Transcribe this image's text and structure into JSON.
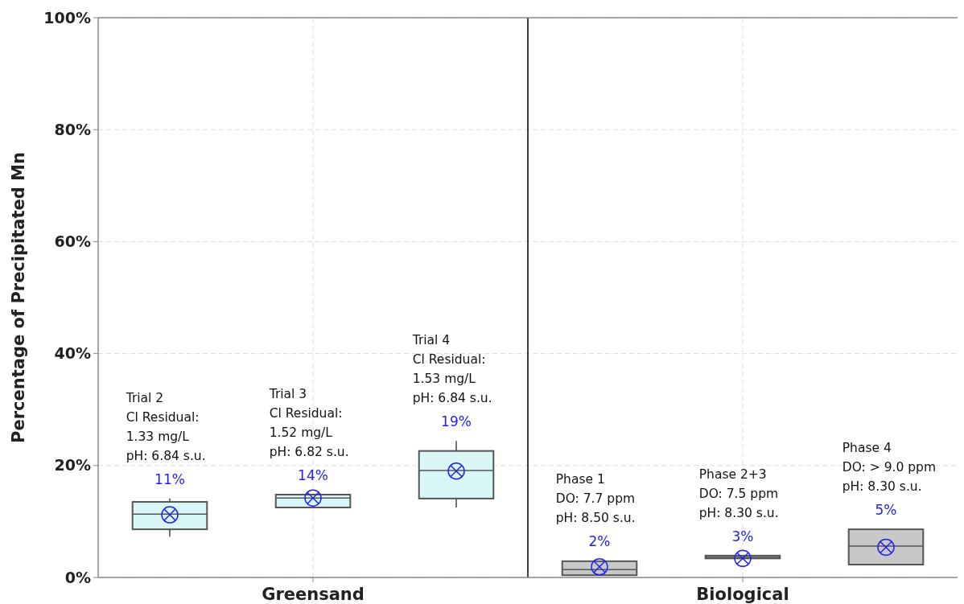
{
  "chart_data": {
    "type": "box",
    "ylabel": "Percentage of Precipitated Mn",
    "categories": [
      null,
      "Greensand",
      null,
      null,
      "Biological",
      null
    ],
    "boxes": [
      {
        "low": 7.3,
        "q1": 8.6,
        "median": 11.3,
        "q3": 13.5,
        "high": 14.1,
        "mean": 11.2
      },
      {
        "low": 12.5,
        "q1": 12.5,
        "median": 14.2,
        "q3": 14.8,
        "high": 14.8,
        "mean": 14.2
      },
      {
        "low": 12.5,
        "q1": 14.1,
        "median": 19.1,
        "q3": 22.6,
        "high": 24.4,
        "mean": 19.0
      },
      {
        "low": 0.4,
        "q1": 0.4,
        "median": 1.4,
        "q3": 2.9,
        "high": 3.0,
        "mean": 1.9
      },
      {
        "low": 3.4,
        "q1": 3.4,
        "median": 3.6,
        "q3": 3.9,
        "high": 3.9,
        "mean": 3.4
      },
      {
        "low": 2.3,
        "q1": 2.3,
        "median": 5.6,
        "q3": 8.6,
        "high": 8.6,
        "mean": 5.4
      }
    ],
    "colors": [
      "#d9f7f7",
      "#d9f7f7",
      "#d9f7f7",
      "#c8c8c8",
      "#c8c8c8",
      "#c8c8c8"
    ],
    "value_labels": [
      "11%",
      "14%",
      "19%",
      "2%",
      "3%",
      "5%"
    ],
    "annotations": [
      "Trial 2\nCl Residual:\n1.33 mg/L\npH: 6.84 s.u.",
      "Trial 3\nCl Residual:\n1.52 mg/L\npH: 6.82 s.u.",
      "Trial 4\nCl Residual:\n1.53 mg/L\npH: 6.84 s.u.",
      "Phase 1\nDO: 7.7 ppm\npH: 8.50 s.u.",
      "Phase 2+3\nDO: 7.5 ppm\npH: 8.30 s.u.",
      "Phase 4\nDO: > 9.0 ppm\npH: 8.30 s.u."
    ],
    "ylim": [
      0,
      100
    ],
    "yticks": [
      {
        "value": 0,
        "label": "0%"
      },
      {
        "value": 20,
        "label": "20%"
      },
      {
        "value": 40,
        "label": "40%"
      },
      {
        "value": 60,
        "label": "60%"
      },
      {
        "value": 80,
        "label": "80%"
      },
      {
        "value": 100,
        "label": "100%"
      }
    ],
    "grid": true,
    "marker": "circle"
  }
}
